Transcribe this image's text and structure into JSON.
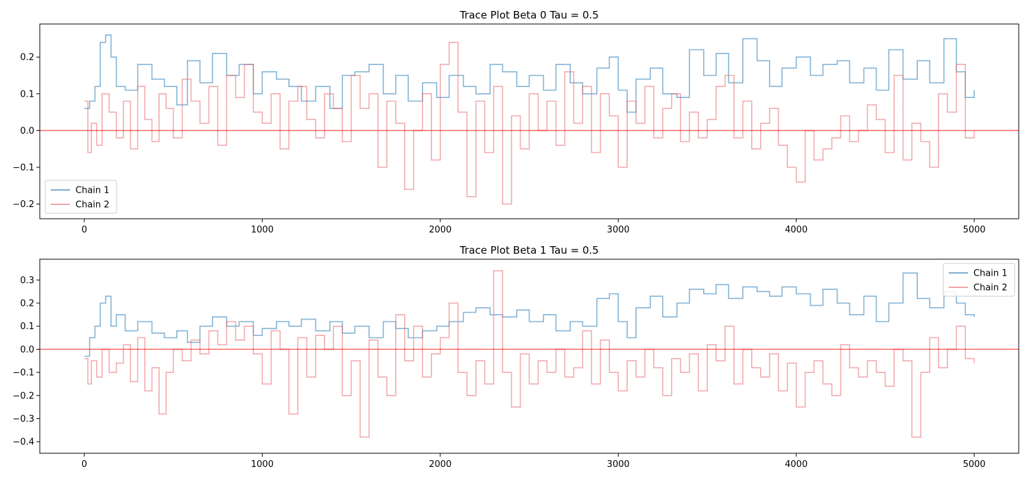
{
  "chart_data": [
    {
      "type": "line",
      "title": "Trace Plot Beta 0 Tau = 0.5",
      "xlim": [
        -250,
        5250
      ],
      "ylim": [
        -0.24,
        0.29
      ],
      "xticks": [
        0,
        1000,
        2000,
        3000,
        4000,
        5000
      ],
      "yticks": [
        -0.2,
        -0.1,
        0.0,
        0.1,
        0.2
      ],
      "ytick_labels": [
        "−0.2",
        "−0.1",
        "0.0",
        "0.1",
        "0.2"
      ],
      "legend_position": "lower-left",
      "hline": {
        "y": 0.0,
        "color": "#ff0000"
      },
      "series": [
        {
          "name": "Chain 1",
          "color": "#1f77b4",
          "x": [
            0,
            30,
            60,
            90,
            120,
            150,
            180,
            230,
            300,
            380,
            450,
            520,
            580,
            650,
            720,
            800,
            870,
            950,
            1000,
            1080,
            1150,
            1220,
            1300,
            1380,
            1450,
            1520,
            1600,
            1680,
            1750,
            1820,
            1900,
            1980,
            2050,
            2130,
            2200,
            2280,
            2350,
            2430,
            2500,
            2580,
            2650,
            2730,
            2800,
            2880,
            2950,
            3000,
            3050,
            3100,
            3180,
            3250,
            3330,
            3400,
            3480,
            3550,
            3620,
            3700,
            3780,
            3850,
            3920,
            4000,
            4080,
            4150,
            4230,
            4300,
            4380,
            4450,
            4520,
            4600,
            4680,
            4750,
            4830,
            4900,
            4950,
            5000
          ],
          "y": [
            0.06,
            0.08,
            0.12,
            0.24,
            0.26,
            0.2,
            0.12,
            0.11,
            0.18,
            0.14,
            0.12,
            0.07,
            0.19,
            0.13,
            0.21,
            0.15,
            0.18,
            0.1,
            0.16,
            0.14,
            0.12,
            0.08,
            0.12,
            0.06,
            0.15,
            0.16,
            0.18,
            0.1,
            0.15,
            0.08,
            0.13,
            0.09,
            0.15,
            0.12,
            0.1,
            0.18,
            0.16,
            0.12,
            0.15,
            0.11,
            0.18,
            0.13,
            0.1,
            0.17,
            0.2,
            0.11,
            0.05,
            0.14,
            0.17,
            0.1,
            0.09,
            0.22,
            0.15,
            0.21,
            0.13,
            0.25,
            0.19,
            0.12,
            0.17,
            0.2,
            0.15,
            0.18,
            0.19,
            0.13,
            0.17,
            0.11,
            0.22,
            0.14,
            0.19,
            0.13,
            0.25,
            0.16,
            0.09,
            0.11
          ]
        },
        {
          "name": "Chain 2",
          "color": "#e8666a",
          "x": [
            0,
            20,
            40,
            70,
            100,
            140,
            180,
            220,
            260,
            300,
            340,
            380,
            420,
            460,
            500,
            550,
            600,
            650,
            700,
            750,
            800,
            850,
            900,
            950,
            1000,
            1050,
            1100,
            1150,
            1200,
            1250,
            1300,
            1350,
            1400,
            1450,
            1500,
            1550,
            1600,
            1650,
            1700,
            1750,
            1800,
            1850,
            1900,
            1950,
            2000,
            2050,
            2100,
            2150,
            2200,
            2250,
            2300,
            2350,
            2400,
            2450,
            2500,
            2550,
            2600,
            2650,
            2700,
            2750,
            2800,
            2850,
            2900,
            2950,
            3000,
            3050,
            3100,
            3150,
            3200,
            3250,
            3300,
            3350,
            3400,
            3450,
            3500,
            3550,
            3600,
            3650,
            3700,
            3750,
            3800,
            3850,
            3900,
            3950,
            4000,
            4050,
            4100,
            4150,
            4200,
            4250,
            4300,
            4350,
            4400,
            4450,
            4500,
            4550,
            4600,
            4650,
            4700,
            4750,
            4800,
            4850,
            4900,
            4950,
            5000
          ],
          "y": [
            0.08,
            -0.06,
            0.02,
            -0.04,
            0.1,
            0.05,
            -0.02,
            0.08,
            -0.05,
            0.12,
            0.03,
            -0.03,
            0.1,
            0.06,
            -0.02,
            0.14,
            0.08,
            0.02,
            0.12,
            -0.04,
            0.15,
            0.09,
            0.18,
            0.05,
            0.02,
            0.1,
            -0.05,
            0.08,
            0.12,
            0.03,
            -0.02,
            0.1,
            0.06,
            -0.03,
            0.15,
            0.06,
            0.1,
            -0.1,
            0.08,
            0.02,
            -0.16,
            0.0,
            0.1,
            -0.08,
            0.18,
            0.24,
            0.05,
            -0.18,
            0.08,
            -0.06,
            0.12,
            -0.2,
            0.04,
            -0.05,
            0.1,
            0.0,
            0.08,
            -0.04,
            0.16,
            0.02,
            0.12,
            -0.06,
            0.1,
            0.04,
            -0.1,
            0.08,
            0.02,
            0.12,
            -0.02,
            0.06,
            0.1,
            -0.03,
            0.05,
            -0.02,
            0.03,
            0.12,
            0.15,
            -0.02,
            0.08,
            -0.05,
            0.02,
            0.06,
            -0.04,
            -0.1,
            -0.14,
            0.0,
            -0.08,
            -0.05,
            -0.02,
            0.04,
            -0.03,
            0.0,
            0.07,
            0.03,
            -0.06,
            0.15,
            -0.08,
            0.02,
            -0.03,
            -0.1,
            0.1,
            0.05,
            0.18,
            -0.02,
            0.0
          ]
        }
      ]
    },
    {
      "type": "line",
      "title": "Trace Plot Beta 1 Tau = 0.5",
      "xlim": [
        -250,
        5250
      ],
      "ylim": [
        -0.45,
        0.39
      ],
      "xticks": [
        0,
        1000,
        2000,
        3000,
        4000,
        5000
      ],
      "yticks": [
        -0.4,
        -0.3,
        -0.2,
        -0.1,
        0.0,
        0.1,
        0.2,
        0.3
      ],
      "ytick_labels": [
        "−0.4",
        "−0.3",
        "−0.2",
        "−0.1",
        "0.0",
        "0.1",
        "0.2",
        "0.3"
      ],
      "legend_position": "upper-right",
      "hline": {
        "y": 0.0,
        "color": "#ff0000"
      },
      "series": [
        {
          "name": "Chain 1",
          "color": "#1f77b4",
          "x": [
            0,
            30,
            60,
            90,
            120,
            150,
            180,
            230,
            300,
            380,
            450,
            520,
            580,
            650,
            720,
            800,
            870,
            950,
            1000,
            1080,
            1150,
            1220,
            1300,
            1380,
            1450,
            1520,
            1600,
            1680,
            1750,
            1820,
            1900,
            1980,
            2050,
            2130,
            2200,
            2280,
            2350,
            2430,
            2500,
            2580,
            2650,
            2730,
            2800,
            2880,
            2950,
            3000,
            3050,
            3100,
            3180,
            3250,
            3330,
            3400,
            3480,
            3550,
            3620,
            3700,
            3780,
            3850,
            3920,
            4000,
            4080,
            4150,
            4230,
            4300,
            4380,
            4450,
            4520,
            4600,
            4680,
            4750,
            4830,
            4900,
            4950,
            5000
          ],
          "y": [
            -0.03,
            0.05,
            0.1,
            0.2,
            0.23,
            0.1,
            0.15,
            0.08,
            0.12,
            0.07,
            0.05,
            0.08,
            0.03,
            0.1,
            0.14,
            0.1,
            0.12,
            0.06,
            0.09,
            0.12,
            0.1,
            0.13,
            0.08,
            0.12,
            0.07,
            0.1,
            0.05,
            0.12,
            0.09,
            0.05,
            0.08,
            0.1,
            0.12,
            0.16,
            0.18,
            0.15,
            0.14,
            0.17,
            0.12,
            0.15,
            0.08,
            0.12,
            0.1,
            0.22,
            0.24,
            0.12,
            0.05,
            0.18,
            0.23,
            0.14,
            0.2,
            0.26,
            0.24,
            0.28,
            0.22,
            0.27,
            0.25,
            0.23,
            0.27,
            0.24,
            0.19,
            0.26,
            0.2,
            0.15,
            0.23,
            0.12,
            0.2,
            0.33,
            0.22,
            0.18,
            0.25,
            0.2,
            0.15,
            0.14
          ]
        },
        {
          "name": "Chain 2",
          "color": "#e8666a",
          "x": [
            0,
            20,
            40,
            70,
            100,
            140,
            180,
            220,
            260,
            300,
            340,
            380,
            420,
            460,
            500,
            550,
            600,
            650,
            700,
            750,
            800,
            850,
            900,
            950,
            1000,
            1050,
            1100,
            1150,
            1200,
            1250,
            1300,
            1350,
            1400,
            1450,
            1500,
            1550,
            1600,
            1650,
            1700,
            1750,
            1800,
            1850,
            1900,
            1950,
            2000,
            2050,
            2100,
            2150,
            2200,
            2250,
            2300,
            2350,
            2400,
            2450,
            2500,
            2550,
            2600,
            2650,
            2700,
            2750,
            2800,
            2850,
            2900,
            2950,
            3000,
            3050,
            3100,
            3150,
            3200,
            3250,
            3300,
            3350,
            3400,
            3450,
            3500,
            3550,
            3600,
            3650,
            3700,
            3750,
            3800,
            3850,
            3900,
            3950,
            4000,
            4050,
            4100,
            4150,
            4200,
            4250,
            4300,
            4350,
            4400,
            4450,
            4500,
            4550,
            4600,
            4650,
            4700,
            4750,
            4800,
            4850,
            4900,
            4950,
            5000
          ],
          "y": [
            -0.04,
            -0.15,
            -0.05,
            -0.12,
            0.0,
            -0.1,
            -0.06,
            0.02,
            -0.14,
            0.05,
            -0.18,
            -0.08,
            -0.28,
            -0.1,
            0.0,
            -0.05,
            0.04,
            -0.02,
            0.08,
            0.02,
            0.12,
            0.04,
            0.1,
            -0.02,
            -0.15,
            0.08,
            0.0,
            -0.28,
            0.05,
            -0.12,
            0.06,
            0.0,
            0.1,
            -0.2,
            -0.05,
            -0.38,
            0.04,
            -0.12,
            -0.2,
            0.15,
            -0.05,
            0.1,
            -0.12,
            -0.02,
            0.05,
            0.2,
            -0.1,
            -0.2,
            -0.05,
            -0.15,
            0.34,
            -0.1,
            -0.25,
            -0.02,
            -0.15,
            -0.05,
            -0.1,
            0.0,
            -0.12,
            -0.08,
            0.08,
            -0.15,
            0.04,
            -0.1,
            -0.18,
            -0.05,
            -0.12,
            0.0,
            -0.08,
            -0.2,
            -0.04,
            -0.1,
            -0.02,
            -0.18,
            0.02,
            -0.05,
            0.1,
            -0.15,
            0.0,
            -0.08,
            -0.12,
            -0.02,
            -0.18,
            -0.06,
            -0.25,
            -0.1,
            -0.05,
            -0.15,
            -0.2,
            0.02,
            -0.08,
            -0.12,
            -0.05,
            -0.1,
            -0.16,
            0.0,
            -0.05,
            -0.38,
            -0.1,
            0.05,
            -0.08,
            0.0,
            0.1,
            -0.04,
            -0.06
          ]
        }
      ]
    }
  ]
}
